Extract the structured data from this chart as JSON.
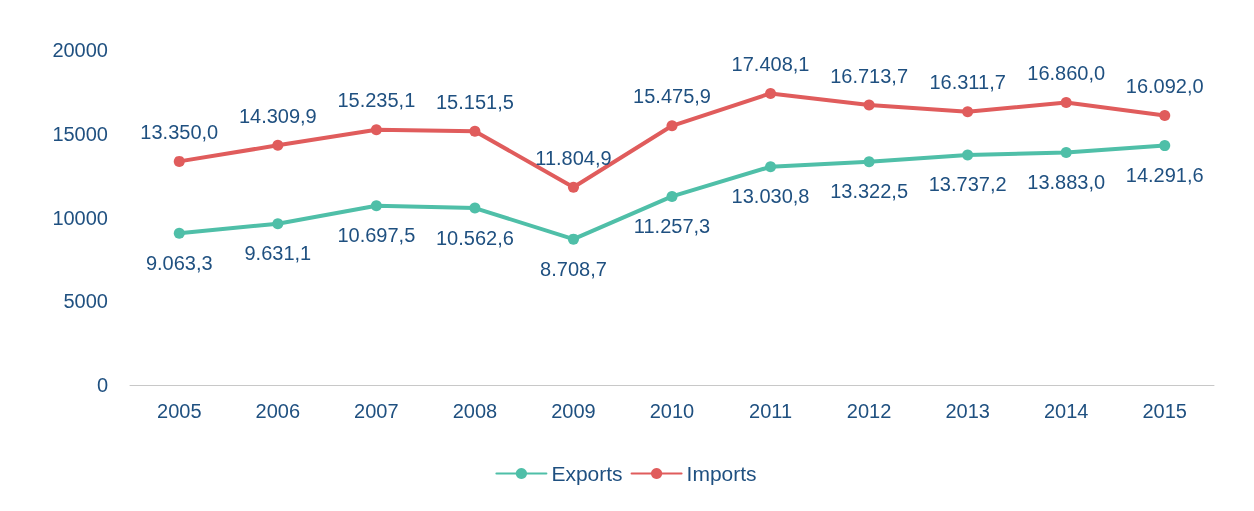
{
  "chart_data": {
    "type": "line",
    "categories": [
      "2005",
      "2006",
      "2007",
      "2008",
      "2009",
      "2010",
      "2011",
      "2012",
      "2013",
      "2014",
      "2015"
    ],
    "series": [
      {
        "name": "Exports",
        "color": "#4fbfa8",
        "values": [
          9063.3,
          9631.1,
          10697.5,
          10562.6,
          8708.7,
          11257.3,
          13030.8,
          13322.5,
          13737.2,
          13883.0,
          14291.6
        ],
        "value_labels": [
          "9.063,3",
          "9.631,1",
          "10.697,5",
          "10.562,6",
          "8.708,7",
          "11.257,3",
          "13.030,8",
          "13.322,5",
          "13.737,2",
          "13.883,0",
          "14.291,6"
        ]
      },
      {
        "name": "Imports",
        "color": "#e05c5c",
        "values": [
          13350.0,
          14309.9,
          15235.1,
          15151.5,
          11804.9,
          15475.9,
          17408.1,
          16713.7,
          16311.7,
          16860.0,
          16092.0
        ],
        "value_labels": [
          "13.350,0",
          "14.309,9",
          "15.235,1",
          "15.151,5",
          "11.804,9",
          "15.475,9",
          "17.408,1",
          "16.713,7",
          "16.311,7",
          "16.860,0",
          "16.092,0"
        ]
      }
    ],
    "ylim": [
      0,
      20000
    ],
    "yticks": [
      0,
      5000,
      10000,
      15000,
      20000
    ],
    "grid": false,
    "legend": "bottom",
    "marker": "circle",
    "line_style": "solid"
  }
}
